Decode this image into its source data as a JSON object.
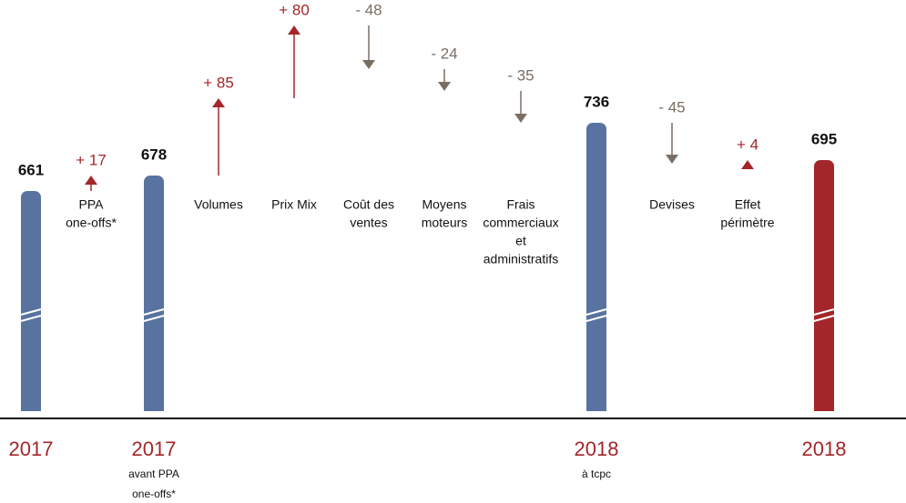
{
  "chart_data": {
    "type": "waterfall",
    "categories": [
      "2017",
      [
        "PPA",
        "one-offs*"
      ],
      "2017",
      [
        "Volumes"
      ],
      [
        "Prix Mix"
      ],
      [
        "Coût des",
        "ventes"
      ],
      [
        "Moyens",
        "moteurs"
      ],
      [
        "Frais",
        "commerciaux",
        "et",
        "administratifs"
      ],
      "2018",
      [
        "Devises"
      ],
      [
        "Effet",
        "périmètre"
      ],
      "2018"
    ],
    "sublabels": [
      null,
      null,
      [
        "avant PPA",
        "one-offs*"
      ],
      null,
      null,
      null,
      null,
      null,
      [
        "à tcpc"
      ],
      null,
      null,
      null
    ],
    "kinds": [
      "total",
      "delta",
      "total",
      "delta",
      "delta",
      "delta",
      "delta",
      "delta",
      "total",
      "delta",
      "delta",
      "total"
    ],
    "values": [
      661,
      17,
      678,
      85,
      80,
      -48,
      -24,
      -35,
      736,
      -45,
      4,
      695
    ],
    "value_labels": [
      null,
      "+ 17",
      null,
      "+ 85",
      "+ 80",
      "- 48",
      "- 24",
      "- 35",
      null,
      "- 45",
      "+ 4",
      null
    ],
    "bar_color": "#5873a0",
    "final_color": "#a3262a",
    "increase_color": "#a3262a",
    "decrease_color": "#7a6e64"
  }
}
